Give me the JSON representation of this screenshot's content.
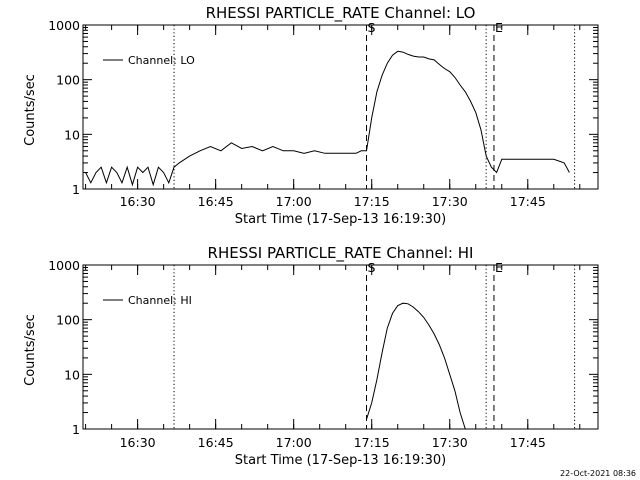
{
  "footer_timestamp": "22-Oct-2021 08:36",
  "chart_data": [
    {
      "type": "line",
      "title": "RHESSI PARTICLE_RATE Channel: LO",
      "xlabel": "Start Time (17-Sep-13 16:19:30)",
      "ylabel": "Counts/sec",
      "y_scale": "log",
      "ylim": [
        1,
        1000
      ],
      "xlim": [
        "16:19:30",
        "17:58:30"
      ],
      "y_ticks": [
        "1",
        "10",
        "100",
        "1000"
      ],
      "x_ticks": [
        "16:30",
        "16:45",
        "17:00",
        "17:15",
        "17:30",
        "17:45"
      ],
      "legend": [
        "Channel: LO"
      ],
      "legend_placement": "top-left",
      "markers": [
        {
          "time": "16:37:00",
          "style": "dotted",
          "label": ""
        },
        {
          "time": "17:14:00",
          "style": "dashed",
          "label": "S"
        },
        {
          "time": "17:37:00",
          "style": "dotted",
          "label": ""
        },
        {
          "time": "17:38:30",
          "style": "dashed",
          "label": "E"
        },
        {
          "time": "17:54:00",
          "style": "dotted",
          "label": ""
        }
      ],
      "series": [
        {
          "name": "Channel: LO",
          "x": [
            "16:20",
            "16:21",
            "16:22",
            "16:23",
            "16:24",
            "16:25",
            "16:26",
            "16:27",
            "16:28",
            "16:29",
            "16:30",
            "16:31",
            "16:32",
            "16:33",
            "16:34",
            "16:35",
            "16:36",
            "16:37",
            "16:38",
            "16:40",
            "16:42",
            "16:44",
            "16:46",
            "16:48",
            "16:50",
            "16:52",
            "16:54",
            "16:56",
            "16:58",
            "17:00",
            "17:02",
            "17:04",
            "17:06",
            "17:08",
            "17:10",
            "17:12",
            "17:13",
            "17:14",
            "17:15",
            "17:16",
            "17:17",
            "17:18",
            "17:19",
            "17:20",
            "17:21",
            "17:22",
            "17:23",
            "17:24",
            "17:25",
            "17:26",
            "17:27",
            "17:28",
            "17:29",
            "17:30",
            "17:31",
            "17:32",
            "17:33",
            "17:34",
            "17:35",
            "17:36",
            "17:37",
            "17:38",
            "17:39",
            "17:40",
            "17:42",
            "17:44",
            "17:46",
            "17:48",
            "17:50",
            "17:52",
            "17:53"
          ],
          "values": [
            2,
            1.3,
            2,
            2.5,
            1.3,
            2.5,
            2,
            1.3,
            2.5,
            1.2,
            2.5,
            2,
            2.5,
            1.2,
            2.5,
            2,
            1.3,
            2.5,
            3,
            4,
            5,
            6,
            5,
            7,
            5.5,
            6,
            5,
            6,
            5,
            5,
            4.5,
            5,
            4.5,
            4.5,
            4.5,
            4.5,
            5,
            5,
            20,
            60,
            120,
            200,
            280,
            330,
            320,
            290,
            270,
            260,
            260,
            240,
            230,
            190,
            160,
            140,
            110,
            80,
            60,
            40,
            25,
            12,
            4,
            2.5,
            2,
            3.5,
            3.5,
            3.5,
            3.5,
            3.5,
            3.5,
            3,
            2
          ]
        }
      ]
    },
    {
      "type": "line",
      "title": "RHESSI PARTICLE_RATE Channel: HI",
      "xlabel": "Start Time (17-Sep-13 16:19:30)",
      "ylabel": "Counts/sec",
      "y_scale": "log",
      "ylim": [
        1,
        1000
      ],
      "xlim": [
        "16:19:30",
        "17:58:30"
      ],
      "y_ticks": [
        "1",
        "10",
        "100",
        "1000"
      ],
      "x_ticks": [
        "16:30",
        "16:45",
        "17:00",
        "17:15",
        "17:30",
        "17:45"
      ],
      "legend": [
        "Channel: HI"
      ],
      "legend_placement": "top-left",
      "markers": [
        {
          "time": "16:37:00",
          "style": "dotted",
          "label": ""
        },
        {
          "time": "17:14:00",
          "style": "dashed",
          "label": "S"
        },
        {
          "time": "17:37:00",
          "style": "dotted",
          "label": ""
        },
        {
          "time": "17:38:30",
          "style": "dashed",
          "label": "E"
        },
        {
          "time": "17:54:00",
          "style": "dotted",
          "label": ""
        }
      ],
      "series": [
        {
          "name": "Channel: HI",
          "x": [
            "17:14",
            "17:15",
            "17:16",
            "17:17",
            "17:18",
            "17:19",
            "17:20",
            "17:21",
            "17:22",
            "17:23",
            "17:24",
            "17:25",
            "17:26",
            "17:27",
            "17:28",
            "17:29",
            "17:30",
            "17:31",
            "17:32",
            "17:33"
          ],
          "values": [
            1.5,
            3,
            8,
            25,
            70,
            130,
            180,
            200,
            195,
            170,
            140,
            110,
            80,
            55,
            35,
            20,
            10,
            5,
            2,
            1
          ]
        }
      ]
    }
  ]
}
